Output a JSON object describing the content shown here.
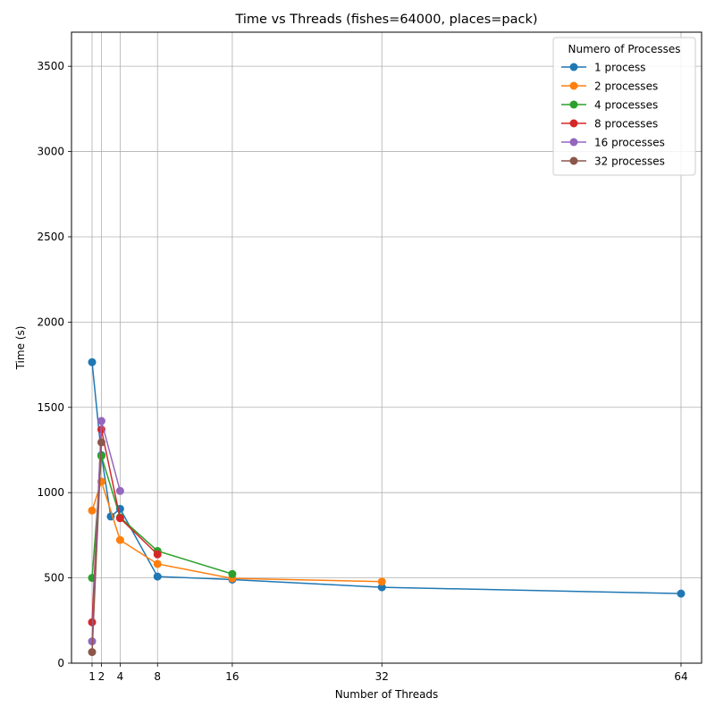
{
  "chart_data": {
    "type": "line",
    "title": "Time vs Threads (fishes=64000, places=pack)",
    "xlabel": "Number of Threads",
    "ylabel": "Time (s)",
    "xlim": [
      -1.2,
      66.2
    ],
    "ylim": [
      0,
      3700
    ],
    "xticks": [
      1,
      2,
      4,
      8,
      16,
      32,
      64
    ],
    "yticks": [
      0,
      500,
      1000,
      1500,
      2000,
      2500,
      3000,
      3500
    ],
    "grid": true,
    "legend": {
      "title": "Numero of Processes",
      "position": "top-right"
    },
    "series": [
      {
        "name": "1 process",
        "color": "#1f77b4",
        "x": [
          1,
          2,
          3,
          4,
          8,
          16,
          32,
          64
        ],
        "y": [
          1765,
          1220,
          860,
          905,
          508,
          490,
          445,
          408
        ]
      },
      {
        "name": "2 processes",
        "color": "#ff7f0e",
        "x": [
          1,
          2,
          4,
          8,
          16,
          32
        ],
        "y": [
          895,
          1065,
          722,
          582,
          497,
          478
        ]
      },
      {
        "name": "4 processes",
        "color": "#2ca02c",
        "x": [
          1,
          2,
          4,
          8,
          16
        ],
        "y": [
          500,
          1215,
          855,
          658,
          523
        ]
      },
      {
        "name": "8 processes",
        "color": "#d62728",
        "x": [
          1,
          2,
          4,
          8
        ],
        "y": [
          240,
          1370,
          850,
          638
        ]
      },
      {
        "name": "16 processes",
        "color": "#9467bd",
        "x": [
          1,
          2,
          4
        ],
        "y": [
          128,
          1420,
          1010
        ]
      },
      {
        "name": "32 processes",
        "color": "#8c564b",
        "x": [
          1,
          2
        ],
        "y": [
          65,
          1295
        ]
      }
    ]
  }
}
